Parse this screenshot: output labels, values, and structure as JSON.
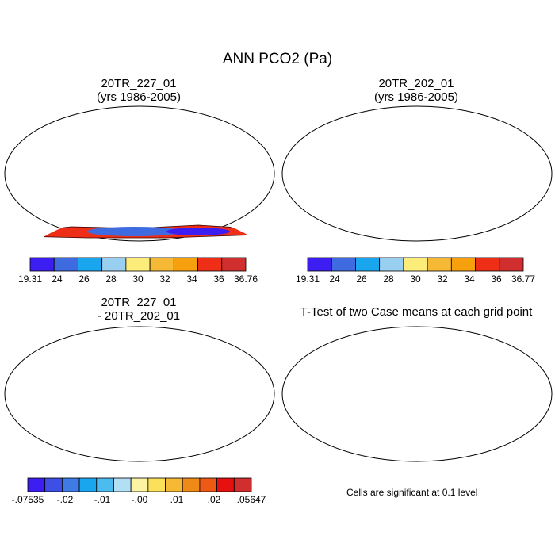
{
  "figure_title": "ANN PCO2 (Pa)",
  "panels": [
    {
      "title_line1": "20TR_227_01",
      "title_line2": "(yrs 1986-2005)"
    },
    {
      "title_line1": "20TR_202_01",
      "title_line2": "(yrs 1986-2005)"
    },
    {
      "title_line1": "20TR_227_01",
      "title_line2": "- 20TR_202_01"
    },
    {
      "title_line1": "T-Test of two Case means at each grid point",
      "title_line2": ""
    }
  ],
  "colorbars": [
    {
      "colors": [
        "#3d1ef2",
        "#3e6ce0",
        "#1aa6ee",
        "#99cff0",
        "#fced7a",
        "#f5b935",
        "#f5a00c",
        "#ee2e16",
        "#d12f2f"
      ],
      "labels": [
        "19.31",
        "24",
        "26",
        "28",
        "30",
        "32",
        "34",
        "36",
        "36.76"
      ]
    },
    {
      "colors": [
        "#3d1ef2",
        "#3e6ce0",
        "#1aa6ee",
        "#99cff0",
        "#fced7a",
        "#f5b935",
        "#f5a00c",
        "#ee2e16",
        "#d12f2f"
      ],
      "labels": [
        "19.31",
        "24",
        "26",
        "28",
        "30",
        "32",
        "34",
        "36",
        "36.77"
      ]
    },
    {
      "colors": [
        "#3d1ef2",
        "#3e4fe6",
        "#3e7be4",
        "#1aa6ee",
        "#4cbcf0",
        "#b3dff5",
        "#fcf4a2",
        "#fbe05a",
        "#f5b935",
        "#f08a16",
        "#ee5a16",
        "#e61010",
        "#d12f2f"
      ],
      "labels": [
        "-.07535",
        "-.02",
        "-.01",
        "-.00",
        ".01",
        ".02",
        ".05647"
      ]
    }
  ],
  "significance_note": "Cells are significant at 0.1 level"
}
